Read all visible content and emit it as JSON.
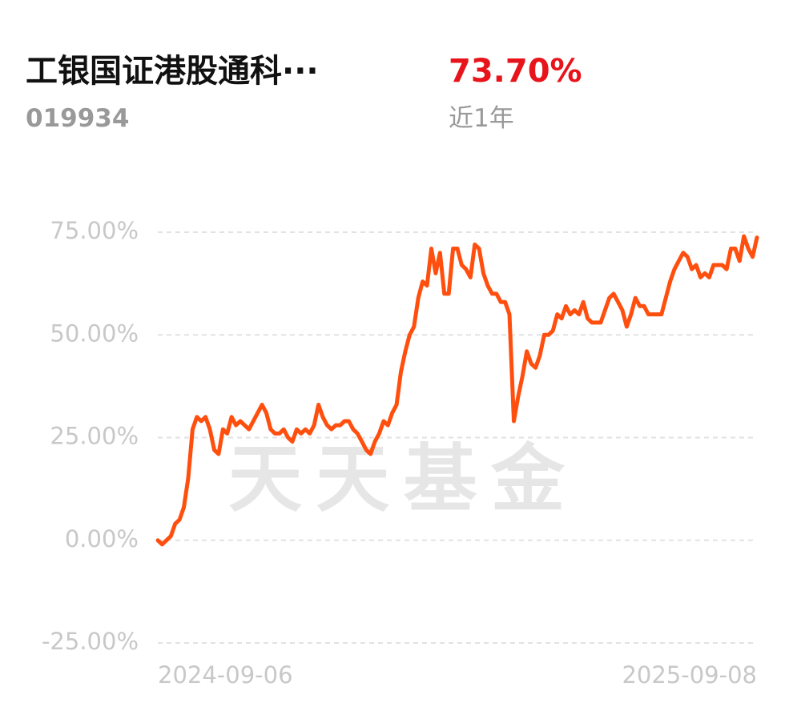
{
  "header": {
    "title": "工银国证港股通科···",
    "code": "019934",
    "return": "73.70%",
    "period": "近1年"
  },
  "watermark": "天天基金",
  "chart_data": {
    "type": "line",
    "categories": [
      "2024-09-06",
      null,
      null,
      null,
      null,
      null,
      null,
      null,
      null,
      null,
      null,
      null,
      null,
      null,
      null,
      null,
      null,
      null,
      null,
      null,
      null,
      null,
      null,
      null,
      null,
      null,
      null,
      null,
      null,
      null,
      null,
      null,
      null,
      null,
      null,
      null,
      null,
      null,
      null,
      null,
      null,
      null,
      null,
      null,
      null,
      null,
      null,
      null,
      null,
      null,
      null,
      null,
      null,
      null,
      null,
      null,
      null,
      null,
      null,
      null,
      null,
      null,
      null,
      null,
      null,
      null,
      null,
      null,
      null,
      null,
      null,
      null,
      null,
      null,
      null,
      null,
      null,
      null,
      null,
      null,
      null,
      null,
      null,
      null,
      null,
      null,
      null,
      null,
      null,
      null,
      null,
      null,
      null,
      null,
      null,
      null,
      null,
      null,
      null,
      null,
      null,
      null,
      null,
      null,
      null,
      null,
      null,
      null,
      null,
      null,
      null,
      null,
      null,
      null,
      null,
      null,
      null,
      null,
      null,
      null,
      null,
      null,
      null,
      null,
      null,
      null,
      null,
      null,
      null,
      null,
      null,
      null,
      null,
      null,
      null,
      null,
      null,
      null,
      "2025-09-08"
    ],
    "series": [
      {
        "color": "#ff4f0f",
        "values": [
          0,
          -1,
          0,
          1,
          4,
          5,
          8,
          15,
          27,
          30,
          29,
          30,
          27,
          22,
          21,
          27,
          26,
          30,
          28,
          29,
          28,
          27,
          29,
          31,
          33,
          31,
          27,
          26,
          26,
          27,
          25,
          24,
          27,
          26,
          27,
          26,
          28,
          33,
          30,
          28,
          27,
          28,
          28,
          29,
          29,
          27,
          26,
          24,
          22,
          21,
          24,
          26,
          29,
          28,
          31,
          33,
          41,
          46,
          50,
          52,
          59,
          63,
          62,
          71,
          65,
          70,
          60,
          60,
          71,
          71,
          67,
          66,
          64,
          72,
          71,
          65,
          62,
          60,
          60,
          58,
          58,
          55,
          29,
          35,
          40,
          46,
          43,
          42,
          45,
          50,
          50,
          51,
          55,
          54,
          57,
          55,
          56,
          55,
          58,
          54,
          53,
          53,
          53,
          56,
          59,
          60,
          58,
          56,
          52,
          55,
          59,
          57,
          57,
          55,
          55,
          55,
          55,
          59,
          63,
          66,
          68,
          70,
          69,
          66,
          67,
          64,
          65,
          64,
          67,
          67,
          67,
          66,
          71,
          71,
          68,
          74,
          71,
          69,
          73.7
        ]
      }
    ],
    "ylim": [
      -25,
      75
    ],
    "yticks": [
      {
        "value": -25,
        "label": "-25.00%"
      },
      {
        "value": 0,
        "label": "0.00%"
      },
      {
        "value": 25,
        "label": "25.00%"
      },
      {
        "value": 50,
        "label": "50.00%"
      },
      {
        "value": 75,
        "label": "75.00%"
      }
    ],
    "grid": true
  }
}
